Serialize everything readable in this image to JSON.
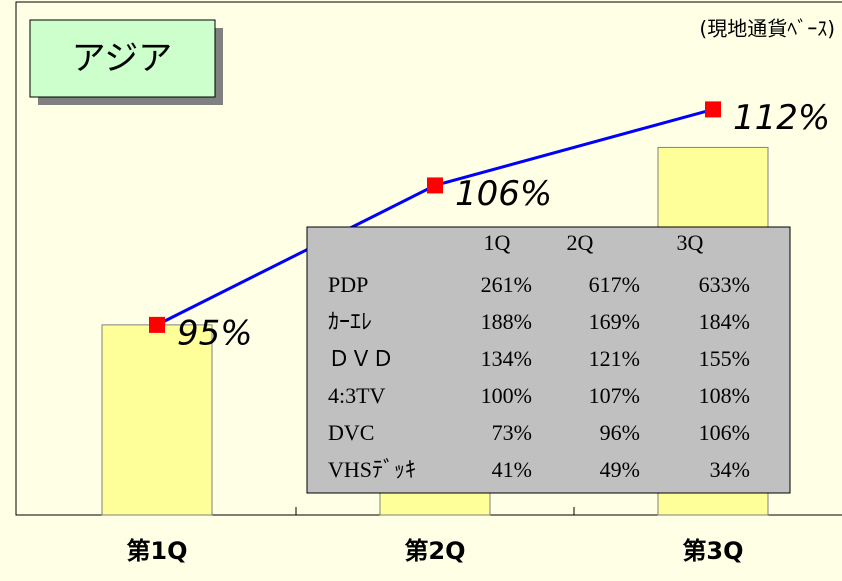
{
  "chart_data": {
    "type": "bar_line",
    "title": "アジア",
    "note": "(現地通貨ﾍﾞｰｽ)",
    "categories": [
      "第1Q",
      "第2Q",
      "第3Q"
    ],
    "ylim": [
      80,
      120
    ],
    "series": [
      {
        "type": "bar",
        "color": "#ffff99",
        "values": [
          95,
          100,
          109
        ]
      },
      {
        "type": "line",
        "color": "#0000ff",
        "marker_color": "#ff0000",
        "values": [
          95,
          106,
          112
        ],
        "value_labels": [
          "95%",
          "106%",
          "112%"
        ]
      }
    ]
  },
  "table": {
    "header": [
      "1Q",
      "2Q",
      "3Q"
    ],
    "rows": [
      [
        "PDP",
        "261%",
        "617%",
        "633%"
      ],
      [
        "ｶｰｴﾚ",
        "188%",
        "169%",
        "184%"
      ],
      [
        "ＤＶＤ",
        "134%",
        "121%",
        "155%"
      ],
      [
        "4:3TV",
        "100%",
        "107%",
        "108%"
      ],
      [
        "DVC",
        "73%",
        "96%",
        "106%"
      ],
      [
        "VHSﾃﾞｯｷ",
        "41%",
        "49%",
        "34%"
      ]
    ]
  }
}
